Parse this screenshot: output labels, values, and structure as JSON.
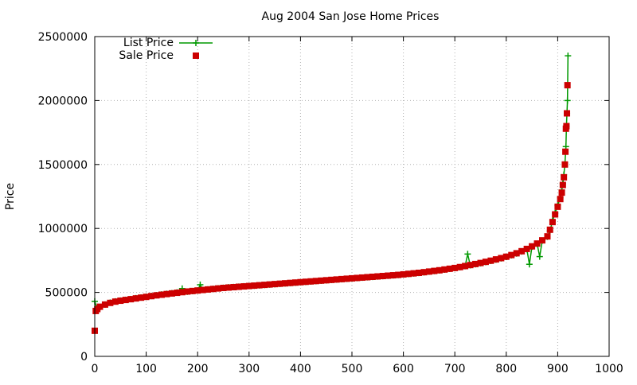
{
  "chart_data": {
    "type": "scatter",
    "title": "Aug 2004 San Jose Home Prices",
    "xlabel": "",
    "ylabel": "Price",
    "xlim": [
      0,
      1000
    ],
    "ylim": [
      0,
      2500000
    ],
    "xticks": [
      0,
      100,
      200,
      300,
      400,
      500,
      600,
      700,
      800,
      900,
      1000
    ],
    "yticks": [
      0,
      500000,
      1000000,
      1500000,
      2000000,
      2500000
    ],
    "grid": true,
    "legend_position": "top-left",
    "series": [
      {
        "name": "List Price",
        "style": "lines+crosses",
        "color": "#009900",
        "points": [
          [
            0,
            430000
          ],
          [
            5,
            365000
          ],
          [
            10,
            385000
          ],
          [
            20,
            405000
          ],
          [
            30,
            420000
          ],
          [
            40,
            430000
          ],
          [
            50,
            436000
          ],
          [
            60,
            442000
          ],
          [
            70,
            448000
          ],
          [
            80,
            455000
          ],
          [
            90,
            460000
          ],
          [
            100,
            466000
          ],
          [
            110,
            472000
          ],
          [
            120,
            478000
          ],
          [
            130,
            484000
          ],
          [
            140,
            489000
          ],
          [
            150,
            494000
          ],
          [
            160,
            500000
          ],
          [
            170,
            530000
          ],
          [
            180,
            505000
          ],
          [
            190,
            510000
          ],
          [
            200,
            515000
          ],
          [
            205,
            560000
          ],
          [
            210,
            520000
          ],
          [
            220,
            524000
          ],
          [
            230,
            528000
          ],
          [
            240,
            532000
          ],
          [
            250,
            536000
          ],
          [
            260,
            540000
          ],
          [
            270,
            542000
          ],
          [
            280,
            545000
          ],
          [
            290,
            548000
          ],
          [
            300,
            550000
          ],
          [
            310,
            552000
          ],
          [
            320,
            555000
          ],
          [
            330,
            558000
          ],
          [
            340,
            561000
          ],
          [
            350,
            564000
          ],
          [
            360,
            567000
          ],
          [
            370,
            570000
          ],
          [
            380,
            573000
          ],
          [
            390,
            576000
          ],
          [
            400,
            579000
          ],
          [
            410,
            582000
          ],
          [
            420,
            585000
          ],
          [
            430,
            588000
          ],
          [
            440,
            591000
          ],
          [
            450,
            594000
          ],
          [
            460,
            597000
          ],
          [
            470,
            600000
          ],
          [
            480,
            603000
          ],
          [
            490,
            606000
          ],
          [
            500,
            609000
          ],
          [
            510,
            612000
          ],
          [
            520,
            615000
          ],
          [
            530,
            618000
          ],
          [
            540,
            621000
          ],
          [
            550,
            624000
          ],
          [
            560,
            627000
          ],
          [
            570,
            630000
          ],
          [
            580,
            633000
          ],
          [
            590,
            636000
          ],
          [
            600,
            640000
          ],
          [
            610,
            644000
          ],
          [
            620,
            648000
          ],
          [
            630,
            652000
          ],
          [
            640,
            657000
          ],
          [
            650,
            662000
          ],
          [
            660,
            667000
          ],
          [
            670,
            672000
          ],
          [
            680,
            678000
          ],
          [
            690,
            684000
          ],
          [
            700,
            690000
          ],
          [
            710,
            697000
          ],
          [
            720,
            705000
          ],
          [
            725,
            800000
          ],
          [
            730,
            712000
          ],
          [
            740,
            720000
          ],
          [
            750,
            728000
          ],
          [
            760,
            737000
          ],
          [
            770,
            746000
          ],
          [
            780,
            756000
          ],
          [
            790,
            766000
          ],
          [
            800,
            777000
          ],
          [
            810,
            790000
          ],
          [
            820,
            804000
          ],
          [
            830,
            820000
          ],
          [
            840,
            838000
          ],
          [
            845,
            720000
          ],
          [
            850,
            858000
          ],
          [
            860,
            880000
          ],
          [
            865,
            780000
          ],
          [
            870,
            905000
          ],
          [
            880,
            935000
          ],
          [
            885,
            980000
          ],
          [
            890,
            1060000
          ],
          [
            895,
            1120000
          ],
          [
            900,
            1180000
          ],
          [
            905,
            1240000
          ],
          [
            908,
            1300000
          ],
          [
            910,
            1350000
          ],
          [
            912,
            1420000
          ],
          [
            914,
            1500000
          ],
          [
            916,
            1640000
          ],
          [
            917,
            1800000
          ],
          [
            918,
            1900000
          ],
          [
            919,
            2000000
          ],
          [
            920,
            2350000
          ]
        ]
      },
      {
        "name": "Sale Price",
        "style": "points-squares",
        "color": "#cc0000",
        "points": [
          [
            0,
            200000
          ],
          [
            2,
            355000
          ],
          [
            5,
            370000
          ],
          [
            10,
            388000
          ],
          [
            20,
            405000
          ],
          [
            30,
            418000
          ],
          [
            40,
            428000
          ],
          [
            50,
            435000
          ],
          [
            60,
            441000
          ],
          [
            70,
            447000
          ],
          [
            80,
            453000
          ],
          [
            90,
            459000
          ],
          [
            100,
            465000
          ],
          [
            110,
            471000
          ],
          [
            120,
            477000
          ],
          [
            130,
            482000
          ],
          [
            140,
            487000
          ],
          [
            150,
            492000
          ],
          [
            160,
            497000
          ],
          [
            170,
            502000
          ],
          [
            180,
            507000
          ],
          [
            190,
            511000
          ],
          [
            200,
            515000
          ],
          [
            210,
            519000
          ],
          [
            220,
            523000
          ],
          [
            230,
            527000
          ],
          [
            240,
            531000
          ],
          [
            250,
            535000
          ],
          [
            260,
            538000
          ],
          [
            270,
            541000
          ],
          [
            280,
            544000
          ],
          [
            290,
            547000
          ],
          [
            300,
            550000
          ],
          [
            310,
            553000
          ],
          [
            320,
            556000
          ],
          [
            330,
            559000
          ],
          [
            340,
            562000
          ],
          [
            350,
            565000
          ],
          [
            360,
            568000
          ],
          [
            370,
            571000
          ],
          [
            380,
            574000
          ],
          [
            390,
            577000
          ],
          [
            400,
            580000
          ],
          [
            410,
            583000
          ],
          [
            420,
            586000
          ],
          [
            430,
            589000
          ],
          [
            440,
            592000
          ],
          [
            450,
            595000
          ],
          [
            460,
            598000
          ],
          [
            470,
            601000
          ],
          [
            480,
            604000
          ],
          [
            490,
            607000
          ],
          [
            500,
            610000
          ],
          [
            510,
            613000
          ],
          [
            520,
            616000
          ],
          [
            530,
            619000
          ],
          [
            540,
            622000
          ],
          [
            550,
            625000
          ],
          [
            560,
            628000
          ],
          [
            570,
            631000
          ],
          [
            580,
            634000
          ],
          [
            590,
            637000
          ],
          [
            600,
            641000
          ],
          [
            610,
            645000
          ],
          [
            620,
            649000
          ],
          [
            630,
            653000
          ],
          [
            640,
            658000
          ],
          [
            650,
            663000
          ],
          [
            660,
            668000
          ],
          [
            670,
            673000
          ],
          [
            680,
            679000
          ],
          [
            690,
            685000
          ],
          [
            700,
            691000
          ],
          [
            710,
            698000
          ],
          [
            720,
            706000
          ],
          [
            730,
            714000
          ],
          [
            740,
            722000
          ],
          [
            750,
            730000
          ],
          [
            760,
            739000
          ],
          [
            770,
            748000
          ],
          [
            780,
            758000
          ],
          [
            790,
            768000
          ],
          [
            800,
            779000
          ],
          [
            810,
            792000
          ],
          [
            820,
            806000
          ],
          [
            830,
            822000
          ],
          [
            840,
            840000
          ],
          [
            850,
            860000
          ],
          [
            860,
            882000
          ],
          [
            870,
            907000
          ],
          [
            880,
            938000
          ],
          [
            885,
            990000
          ],
          [
            890,
            1050000
          ],
          [
            895,
            1110000
          ],
          [
            900,
            1170000
          ],
          [
            905,
            1230000
          ],
          [
            908,
            1280000
          ],
          [
            910,
            1340000
          ],
          [
            912,
            1400000
          ],
          [
            914,
            1500000
          ],
          [
            915,
            1600000
          ],
          [
            916,
            1780000
          ],
          [
            917,
            1800000
          ],
          [
            918,
            1900000
          ],
          [
            919,
            2120000
          ]
        ]
      }
    ]
  }
}
